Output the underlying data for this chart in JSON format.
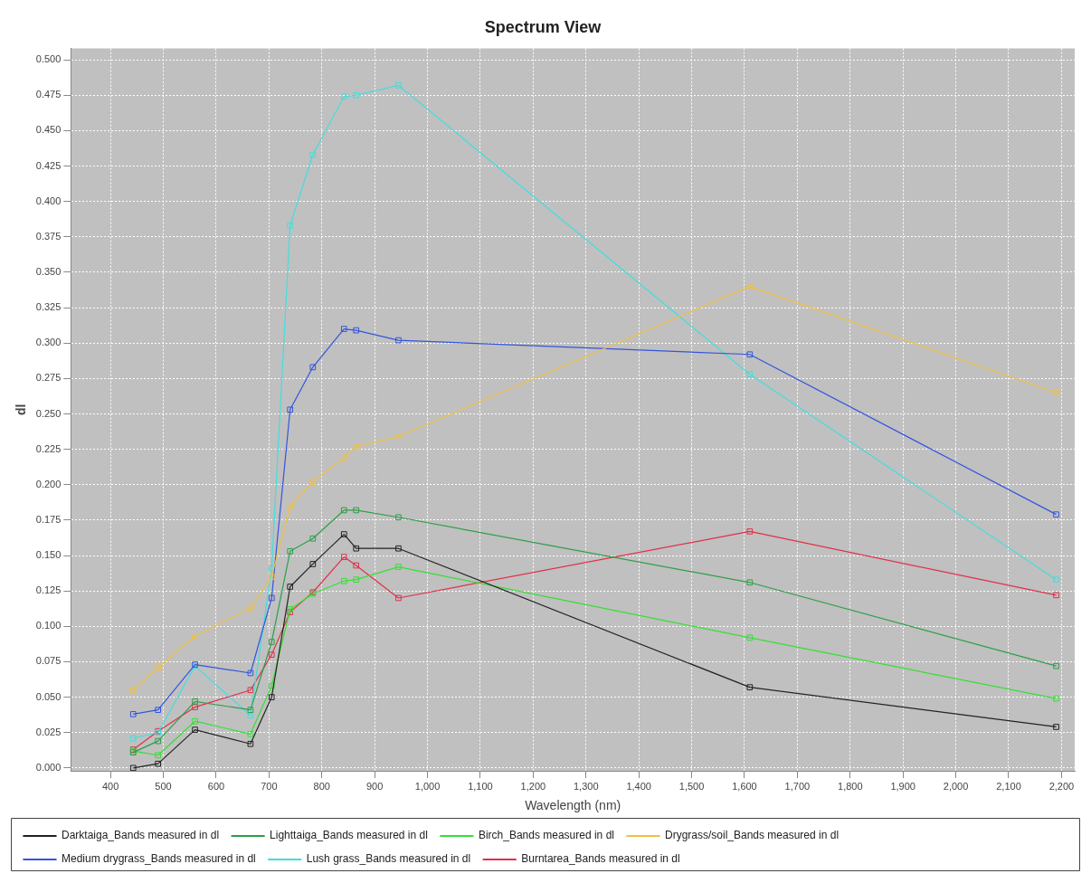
{
  "chart_data": {
    "type": "line",
    "title": "Spectrum View",
    "xlabel": "Wavelength (nm)",
    "ylabel": "dl",
    "marker": "square",
    "grid": true,
    "legend": "bottom",
    "x": [
      443,
      490,
      560,
      665,
      705,
      740,
      783,
      842,
      865,
      945,
      1610,
      2190
    ],
    "xlim": [
      325,
      2225
    ],
    "xticks": [
      400,
      500,
      600,
      700,
      800,
      900,
      {
        "value": 1000,
        "label": "1,000"
      },
      {
        "value": 1100,
        "label": "1,100"
      },
      {
        "value": 1200,
        "label": "1,200"
      },
      {
        "value": 1300,
        "label": "1,300"
      },
      {
        "value": 1400,
        "label": "1,400"
      },
      {
        "value": 1500,
        "label": "1,500"
      },
      {
        "value": 1600,
        "label": "1,600"
      },
      {
        "value": 1700,
        "label": "1,700"
      },
      {
        "value": 1800,
        "label": "1,800"
      },
      {
        "value": 1900,
        "label": "1,900"
      },
      {
        "value": 2000,
        "label": "2,000"
      },
      {
        "value": 2100,
        "label": "2,100"
      },
      {
        "value": 2200,
        "label": "2,200"
      }
    ],
    "ylim": [
      -0.002,
      0.508
    ],
    "yticks": [
      {
        "value": 0,
        "label": "0.000"
      },
      {
        "value": 0.025,
        "label": "0.025"
      },
      {
        "value": 0.05,
        "label": "0.050"
      },
      {
        "value": 0.075,
        "label": "0.075"
      },
      {
        "value": 0.1,
        "label": "0.100"
      },
      {
        "value": 0.125,
        "label": "0.125"
      },
      {
        "value": 0.15,
        "label": "0.150"
      },
      {
        "value": 0.175,
        "label": "0.175"
      },
      {
        "value": 0.2,
        "label": "0.200"
      },
      {
        "value": 0.225,
        "label": "0.225"
      },
      {
        "value": 0.25,
        "label": "0.250"
      },
      {
        "value": 0.275,
        "label": "0.275"
      },
      {
        "value": 0.3,
        "label": "0.300"
      },
      {
        "value": 0.325,
        "label": "0.325"
      },
      {
        "value": 0.35,
        "label": "0.350"
      },
      {
        "value": 0.375,
        "label": "0.375"
      },
      {
        "value": 0.4,
        "label": "0.400"
      },
      {
        "value": 0.425,
        "label": "0.425"
      },
      {
        "value": 0.45,
        "label": "0.450"
      },
      {
        "value": 0.475,
        "label": "0.475"
      },
      {
        "value": 0.5,
        "label": "0.500"
      }
    ],
    "series": [
      {
        "name": "Darktaiga_Bands measured in dl",
        "color": "#222222",
        "values": [
          0.0,
          0.003,
          0.027,
          0.017,
          0.05,
          0.128,
          0.144,
          0.165,
          0.155,
          0.155,
          0.057,
          0.029
        ]
      },
      {
        "name": "Lighttaiga_Bands measured in dl",
        "color": "#2e9e4a",
        "values": [
          0.011,
          0.019,
          0.047,
          0.041,
          0.089,
          0.153,
          0.162,
          0.182,
          0.182,
          0.177,
          0.131,
          0.072
        ]
      },
      {
        "name": "Birch_Bands measured in dl",
        "color": "#33e033",
        "values": [
          0.012,
          0.009,
          0.033,
          0.024,
          0.058,
          0.112,
          0.123,
          0.132,
          0.133,
          0.142,
          0.092,
          0.049
        ]
      },
      {
        "name": "Drygrass/soil_Bands measured in dl",
        "color": "#f0c040",
        "values": [
          0.055,
          0.071,
          0.093,
          0.113,
          0.135,
          0.185,
          0.202,
          0.219,
          0.227,
          0.234,
          0.34,
          0.265
        ]
      },
      {
        "name": "Medium drygrass_Bands measured in dl",
        "color": "#3355dd",
        "values": [
          0.038,
          0.041,
          0.073,
          0.067,
          0.12,
          0.253,
          0.283,
          0.31,
          0.309,
          0.302,
          0.292,
          0.179
        ]
      },
      {
        "name": "Lush grass_Bands measured in dl",
        "color": "#44dddd",
        "values": [
          0.021,
          0.025,
          0.072,
          0.037,
          0.141,
          0.383,
          0.433,
          0.474,
          0.475,
          0.482,
          0.278,
          0.133
        ]
      },
      {
        "name": "Burntarea_Bands measured in dl",
        "color": "#e0304a",
        "values": [
          0.013,
          0.026,
          0.043,
          0.055,
          0.08,
          0.11,
          0.124,
          0.149,
          0.143,
          0.12,
          0.167,
          0.122
        ]
      }
    ]
  }
}
